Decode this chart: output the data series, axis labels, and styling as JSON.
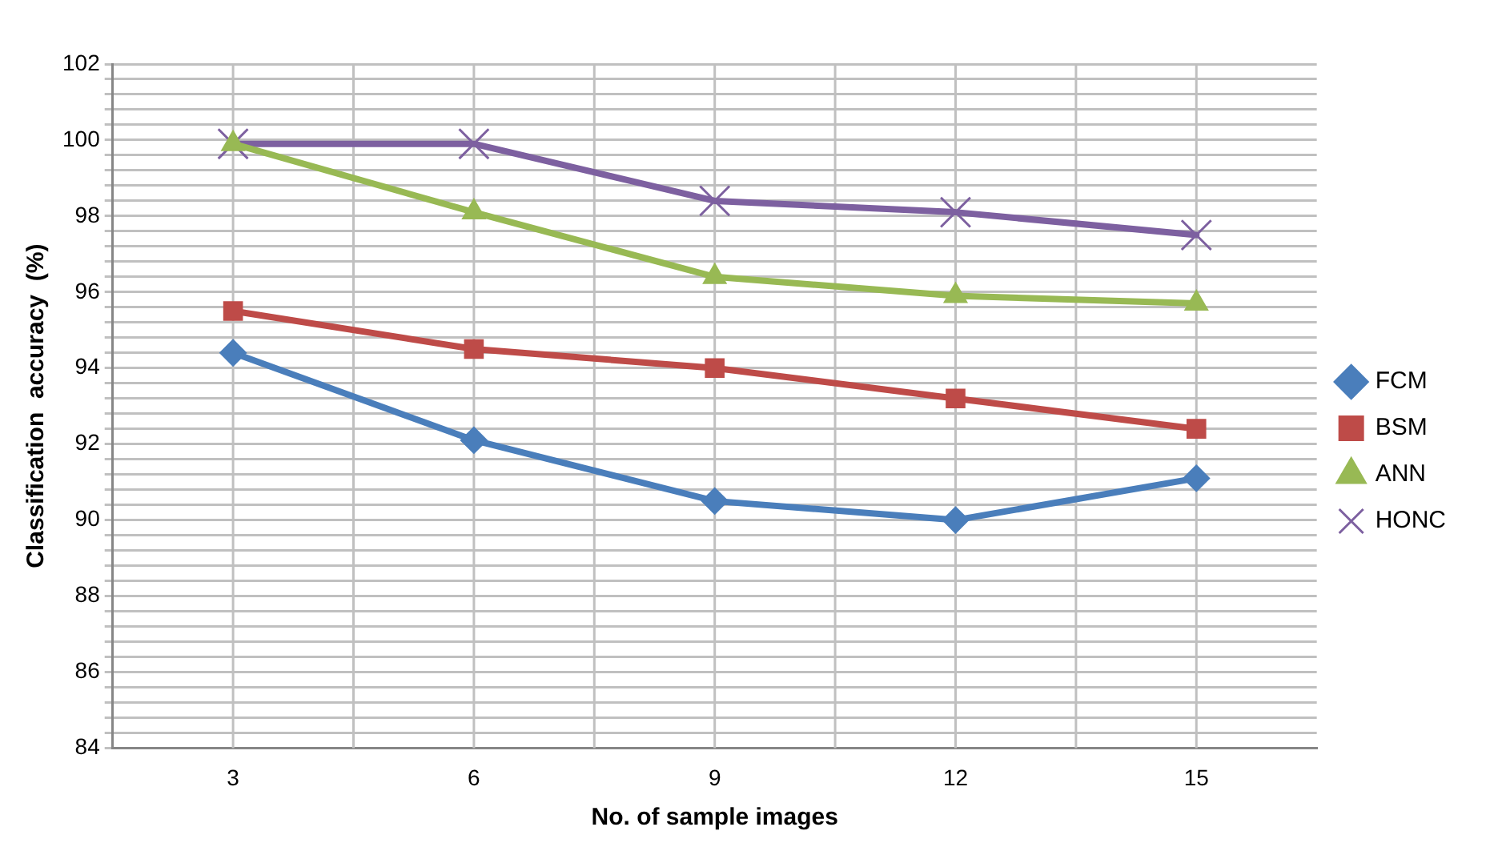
{
  "chart_data": {
    "type": "line",
    "xlabel": "No. of sample images",
    "ylabel": "Classification  accuracy  (%)",
    "categories": [
      "3",
      "6",
      "9",
      "12",
      "15"
    ],
    "series": [
      {
        "name": "FCM",
        "color": "#4a7ebb",
        "marker": "diamond",
        "values": [
          94.4,
          92.1,
          90.5,
          90.0,
          91.1
        ]
      },
      {
        "name": "BSM",
        "color": "#be4b48",
        "marker": "square",
        "values": [
          95.5,
          94.5,
          94.0,
          93.2,
          92.4
        ]
      },
      {
        "name": "ANN",
        "color": "#98b954",
        "marker": "triangle",
        "values": [
          99.9,
          98.1,
          96.4,
          95.9,
          95.7
        ]
      },
      {
        "name": "HONC",
        "color": "#7d60a0",
        "marker": "cross",
        "values": [
          99.9,
          99.9,
          98.4,
          98.1,
          97.5
        ]
      }
    ],
    "ylim": [
      84,
      102
    ],
    "yticks": [
      84,
      {
        "value": 84.4,
        "label": null
      },
      {
        "value": 84.8,
        "label": null
      },
      {
        "value": 85.2,
        "label": null
      },
      {
        "value": 85.6,
        "label": null
      },
      86,
      {
        "value": 86.4,
        "label": null
      },
      {
        "value": 86.8,
        "label": null
      },
      {
        "value": 87.2,
        "label": null
      },
      {
        "value": 87.6,
        "label": null
      },
      88,
      {
        "value": 88.4,
        "label": null
      },
      {
        "value": 88.8,
        "label": null
      },
      {
        "value": 89.2,
        "label": null
      },
      {
        "value": 89.6,
        "label": null
      },
      90,
      {
        "value": 90.4,
        "label": null
      },
      {
        "value": 90.8,
        "label": null
      },
      {
        "value": 91.2,
        "label": null
      },
      {
        "value": 91.6,
        "label": null
      },
      92,
      {
        "value": 92.4,
        "label": null
      },
      {
        "value": 92.8,
        "label": null
      },
      {
        "value": 93.2,
        "label": null
      },
      {
        "value": 93.6,
        "label": null
      },
      94,
      {
        "value": 94.4,
        "label": null
      },
      {
        "value": 94.8,
        "label": null
      },
      {
        "value": 95.2,
        "label": null
      },
      {
        "value": 95.6,
        "label": null
      },
      96,
      {
        "value": 96.4,
        "label": null
      },
      {
        "value": 96.8,
        "label": null
      },
      {
        "value": 97.2,
        "label": null
      },
      {
        "value": 97.6,
        "label": null
      },
      98,
      {
        "value": 98.4,
        "label": null
      },
      {
        "value": 98.8,
        "label": null
      },
      {
        "value": 99.2,
        "label": null
      },
      {
        "value": 99.6,
        "label": null
      },
      100,
      {
        "value": 100.4,
        "label": null
      },
      {
        "value": 100.8,
        "label": null
      },
      {
        "value": 101.2,
        "label": null
      },
      {
        "value": 101.6,
        "label": null
      },
      102
    ],
    "grid": true,
    "legend": "right",
    "line_style": "solid"
  }
}
